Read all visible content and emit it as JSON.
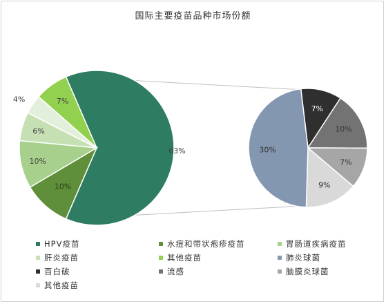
{
  "chart_data": {
    "type": "pie",
    "title": "国际主要疫苗品种市场份额",
    "main_pie": {
      "slices": [
        {
          "name": "HPV疫苗",
          "value": 63,
          "label": "63%",
          "color": "#2e7d63"
        },
        {
          "name": "水痘和带状疱疹疫苗",
          "value": 10,
          "label": "10%",
          "color": "#5f8f3a"
        },
        {
          "name": "胃肠道疾病疫苗",
          "value": 10,
          "label": "10%",
          "color": "#a8d08d"
        },
        {
          "name": "肝炎疫苗",
          "value": 6,
          "label": "6%",
          "color": "#c6e0b4"
        },
        {
          "name": "其他疫苗",
          "value": 4,
          "label": "4%",
          "color": "#e2efda"
        },
        {
          "name": "其他疫苗",
          "value": 7,
          "label": "7%",
          "color": "#92d050"
        }
      ]
    },
    "secondary_pie": {
      "slices": [
        {
          "name": "百白破",
          "value": 7,
          "label": "7%",
          "color": "#2f2f2f"
        },
        {
          "name": "流感",
          "value": 10,
          "label": "10%",
          "color": "#737373"
        },
        {
          "name": "脑膜炎球菌",
          "value": 7,
          "label": "7%",
          "color": "#a6a6a6"
        },
        {
          "name": "其他疫苗",
          "value": 9,
          "label": "9%",
          "color": "#d9d9d9"
        },
        {
          "name": "肺炎球菌",
          "value": 30,
          "label": "30%",
          "color": "#8497b0"
        }
      ]
    },
    "legend": [
      {
        "label": "HPV疫苗",
        "color": "#2e7d63"
      },
      {
        "label": "水痘和带状疱疹疫苗",
        "color": "#5f8f3a"
      },
      {
        "label": "胃肠道疾病疫苗",
        "color": "#a8d08d"
      },
      {
        "label": "肝炎疫苗",
        "color": "#c6e0b4"
      },
      {
        "label": "其他疫苗",
        "color": "#92d050"
      },
      {
        "label": "肺炎球菌",
        "color": "#8497b0"
      },
      {
        "label": "百白破",
        "color": "#2f2f2f"
      },
      {
        "label": "流感",
        "color": "#737373"
      },
      {
        "label": "脑膜炎球菌",
        "color": "#a6a6a6"
      },
      {
        "label": "其他疫苗",
        "color": "#d9d9d9"
      }
    ],
    "legend_placement": "bottom"
  }
}
